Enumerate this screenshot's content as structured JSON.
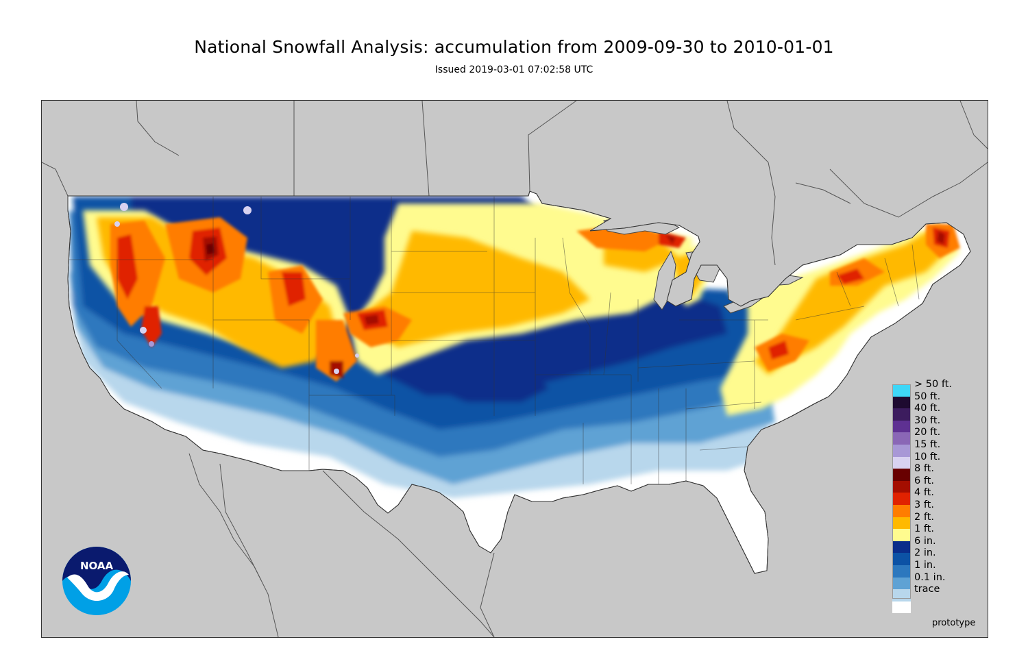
{
  "header": {
    "title": "National Snowfall Analysis: accumulation from 2009-09-30 to 2010-01-01",
    "subtitle": "Issued 2019-03-01 07:02:58 UTC"
  },
  "map": {
    "background_color": "#c8c8c8",
    "land_default_color": "#ffffff"
  },
  "legend": {
    "items": [
      {
        "label": "> 50 ft.",
        "color": "#3fd7f7"
      },
      {
        "label": "50 ft.",
        "color": "#1e0a30"
      },
      {
        "label": "40 ft.",
        "color": "#3c1c5e"
      },
      {
        "label": "30 ft.",
        "color": "#5e3192"
      },
      {
        "label": "20 ft.",
        "color": "#8a67b6"
      },
      {
        "label": "15 ft.",
        "color": "#a898d6"
      },
      {
        "label": "10 ft.",
        "color": "#d8d2f0"
      },
      {
        "label": "8 ft.",
        "color": "#680000"
      },
      {
        "label": "6 ft.",
        "color": "#a40e00"
      },
      {
        "label": "4 ft.",
        "color": "#e02200"
      },
      {
        "label": "3 ft.",
        "color": "#ff7d00"
      },
      {
        "label": "2 ft.",
        "color": "#ffb900"
      },
      {
        "label": "1 ft.",
        "color": "#fffb8f"
      },
      {
        "label": "6 in.",
        "color": "#0a2d8a"
      },
      {
        "label": "2 in.",
        "color": "#0c52a5"
      },
      {
        "label": "1 in.",
        "color": "#2d78be"
      },
      {
        "label": "0.1 in.",
        "color": "#5fa2d4"
      },
      {
        "label": "trace",
        "color": "#b8d7ec"
      }
    ],
    "zero_color": "#ffffff"
  },
  "footer": {
    "note": "prototype"
  },
  "logo": {
    "text": "NOAA",
    "colors": {
      "dark": "#0a1a6e",
      "light": "#00a0e6"
    }
  }
}
